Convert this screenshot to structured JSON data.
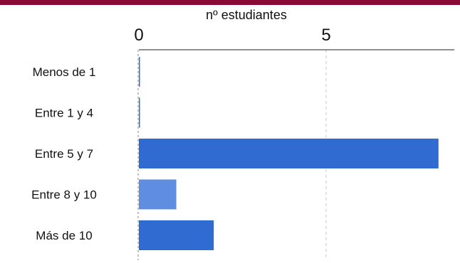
{
  "colors": {
    "accent_bar": "#8a0a36",
    "bar": "#2f6bd0",
    "bar_highlight": "#5f8ee0",
    "grid": "#c8c8c8",
    "axis": "#222222"
  },
  "chart_data": {
    "type": "bar",
    "orientation": "horizontal",
    "xlabel": "nº estudiantes",
    "x_ticks": [
      0,
      5
    ],
    "xlim": [
      0,
      8.2
    ],
    "grid": true,
    "categories": [
      "Menos de 1",
      "Entre 1 y 4",
      "Entre 5 y 7",
      "Entre 8 y 10",
      "Más de 10"
    ],
    "values": [
      0,
      0,
      8,
      1,
      2
    ],
    "highlight_index": 3
  }
}
